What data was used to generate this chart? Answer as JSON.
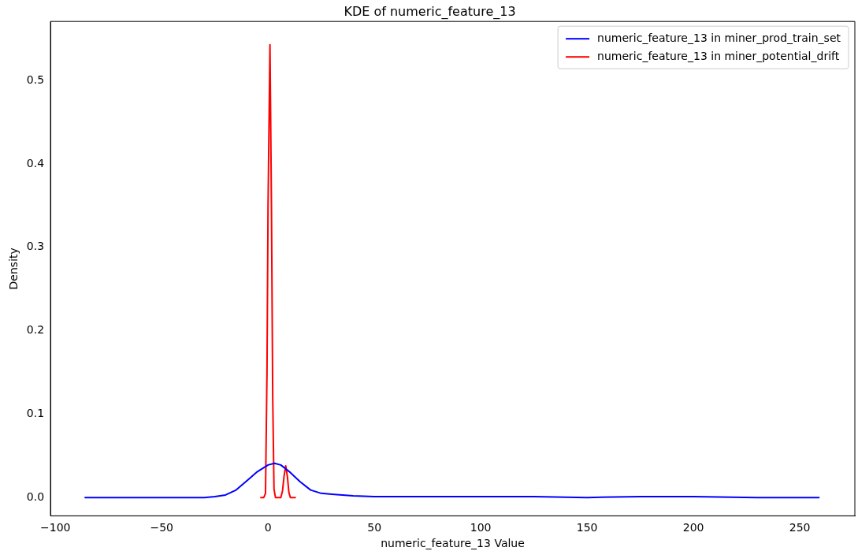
{
  "chart_data": {
    "type": "line",
    "title": "KDE of numeric_feature_13",
    "xlabel": "numeric_feature_13 Value",
    "ylabel": "Density",
    "xlim": [
      -102.3,
      275.9
    ],
    "xticks": [
      -100,
      -50,
      0,
      50,
      100,
      150,
      200,
      250
    ],
    "ylim": [
      -0.022,
      0.571
    ],
    "yticks": [
      {
        "value": 0,
        "label": "0.0"
      },
      0.1,
      0.2,
      0.3,
      0.4,
      0.5
    ],
    "grid": false,
    "legend": "top right",
    "marker": "none",
    "line_style": "solid",
    "series": [
      {
        "name": "numeric_feature_13 in miner_prod_train_set",
        "color": "#0000ff",
        "x": [
          -86,
          -40,
          -30,
          -25,
          -20,
          -15,
          -10,
          -5,
          0,
          3,
          6,
          10,
          15,
          20,
          25,
          30,
          40,
          50,
          75,
          100,
          125,
          150,
          175,
          200,
          230,
          259
        ],
        "values": [
          0,
          0,
          0,
          0.001,
          0.003,
          0.009,
          0.02,
          0.031,
          0.039,
          0.041,
          0.039,
          0.031,
          0.019,
          0.009,
          0.005,
          0.004,
          0.002,
          0.001,
          0.001,
          0.001,
          0.001,
          0,
          0.001,
          0.001,
          0,
          0
        ]
      },
      {
        "name": "numeric_feature_13 in miner_potential_drift",
        "color": "#ff0000",
        "x": [
          -3.4,
          -2,
          -1.2,
          -0.5,
          0,
          0.9,
          1.6,
          2.2,
          2.8,
          3.5,
          6,
          6.8,
          7.5,
          8.3,
          9.1,
          9.8,
          10.5,
          12.8
        ],
        "values": [
          0,
          0,
          0.005,
          0.15,
          0.35,
          0.543,
          0.35,
          0.12,
          0.01,
          0,
          0,
          0.008,
          0.025,
          0.038,
          0.025,
          0.006,
          0,
          0
        ]
      }
    ]
  }
}
